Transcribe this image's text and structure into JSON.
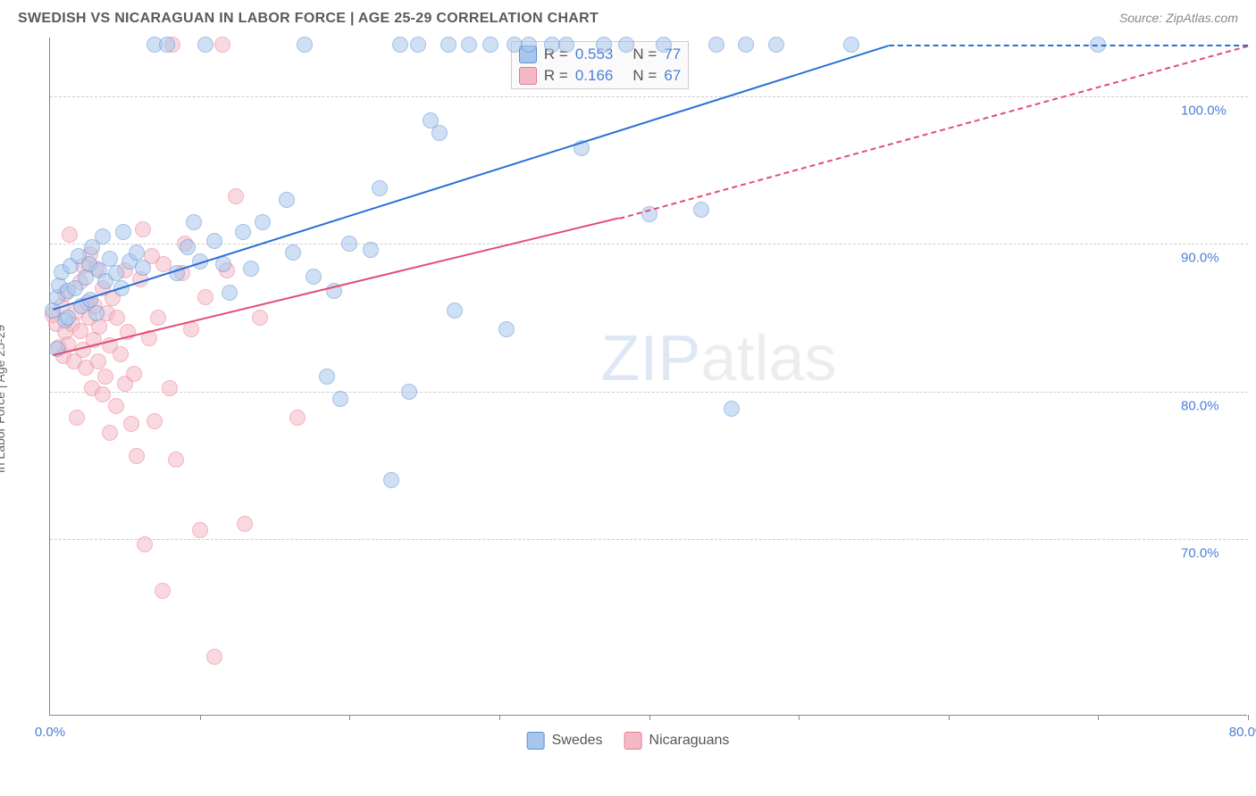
{
  "header": {
    "title": "SWEDISH VS NICARAGUAN IN LABOR FORCE | AGE 25-29 CORRELATION CHART",
    "source": "Source: ZipAtlas.com"
  },
  "ylabel": "In Labor Force | Age 25-29",
  "chart": {
    "type": "scatter",
    "xlim": [
      0,
      80
    ],
    "ylim": [
      58,
      104
    ],
    "xtick_label_at": [
      0,
      80
    ],
    "xtick_marks": [
      10,
      20,
      30,
      40,
      50,
      60,
      70,
      80
    ],
    "xtick_labels": {
      "0": "0.0%",
      "80": "80.0%"
    },
    "ytick_positions": [
      70,
      80,
      90,
      100
    ],
    "ytick_labels": {
      "70": "70.0%",
      "80": "80.0%",
      "90": "90.0%",
      "100": "100.0%"
    },
    "ytick_label_right_offset": 75,
    "grid_color": "#cccccc",
    "axis_color": "#888888",
    "label_color": "#4a7fd6",
    "background_color": "#ffffff",
    "point_radius": 9,
    "point_opacity": 0.55,
    "label_fontsize": 15
  },
  "series": {
    "swedes": {
      "label": "Swedes",
      "fill": "#a8c6ec",
      "stroke": "#5b8fd6",
      "line_color": "#2a6fd6",
      "trend_solid": {
        "x1": 0.2,
        "y1": 85.6,
        "x2": 56,
        "y2": 103.5
      },
      "trend_dash": {
        "x1": 56,
        "y1": 103.5,
        "x2": 80,
        "y2": 103.5
      },
      "points": [
        [
          0.2,
          85.5
        ],
        [
          0.5,
          86.4
        ],
        [
          0.5,
          82.9
        ],
        [
          0.6,
          87.2
        ],
        [
          0.8,
          88.1
        ],
        [
          1.0,
          84.8
        ],
        [
          1.2,
          85.0
        ],
        [
          1.2,
          86.8
        ],
        [
          1.4,
          88.5
        ],
        [
          1.7,
          87.0
        ],
        [
          1.9,
          89.2
        ],
        [
          2.1,
          85.8
        ],
        [
          2.4,
          87.7
        ],
        [
          2.6,
          88.6
        ],
        [
          2.7,
          86.2
        ],
        [
          2.8,
          89.8
        ],
        [
          3.1,
          85.3
        ],
        [
          3.3,
          88.2
        ],
        [
          3.5,
          90.5
        ],
        [
          3.7,
          87.5
        ],
        [
          4.0,
          89.0
        ],
        [
          4.4,
          88.0
        ],
        [
          4.8,
          87.0
        ],
        [
          4.9,
          90.8
        ],
        [
          5.3,
          88.8
        ],
        [
          5.8,
          89.4
        ],
        [
          6.2,
          88.4
        ],
        [
          7.0,
          103.5
        ],
        [
          7.8,
          103.5
        ],
        [
          8.5,
          88.0
        ],
        [
          9.2,
          89.8
        ],
        [
          9.6,
          91.5
        ],
        [
          10.0,
          88.8
        ],
        [
          10.4,
          103.5
        ],
        [
          11.0,
          90.2
        ],
        [
          11.6,
          88.6
        ],
        [
          12.0,
          86.7
        ],
        [
          12.9,
          90.8
        ],
        [
          13.4,
          88.3
        ],
        [
          14.2,
          91.5
        ],
        [
          15.8,
          93.0
        ],
        [
          16.2,
          89.4
        ],
        [
          17.0,
          103.5
        ],
        [
          17.6,
          87.8
        ],
        [
          18.5,
          81.0
        ],
        [
          19.0,
          86.8
        ],
        [
          19.4,
          79.5
        ],
        [
          20.0,
          90.0
        ],
        [
          21.4,
          89.6
        ],
        [
          22.0,
          93.8
        ],
        [
          22.8,
          74.0
        ],
        [
          23.4,
          103.5
        ],
        [
          24.0,
          80.0
        ],
        [
          24.6,
          103.5
        ],
        [
          25.4,
          98.4
        ],
        [
          26.0,
          97.5
        ],
        [
          26.6,
          103.5
        ],
        [
          27.0,
          85.5
        ],
        [
          28.0,
          103.5
        ],
        [
          29.4,
          103.5
        ],
        [
          30.5,
          84.2
        ],
        [
          31.0,
          103.5
        ],
        [
          32.0,
          103.5
        ],
        [
          33.5,
          103.5
        ],
        [
          34.5,
          103.5
        ],
        [
          35.5,
          96.5
        ],
        [
          37.0,
          103.5
        ],
        [
          38.5,
          103.5
        ],
        [
          40.0,
          92.0
        ],
        [
          41.0,
          103.5
        ],
        [
          43.5,
          92.3
        ],
        [
          44.5,
          103.5
        ],
        [
          45.5,
          78.8
        ],
        [
          46.5,
          103.5
        ],
        [
          48.5,
          103.5
        ],
        [
          53.5,
          103.5
        ],
        [
          70.0,
          103.5
        ]
      ]
    },
    "nicaraguans": {
      "label": "Nicaraguans",
      "fill": "#f5b9c6",
      "stroke": "#e77a94",
      "line_color": "#e24d74",
      "trend_solid": {
        "x1": 0.2,
        "y1": 82.5,
        "x2": 38,
        "y2": 91.8
      },
      "trend_dash": {
        "x1": 38,
        "y1": 91.8,
        "x2": 80,
        "y2": 103.5
      },
      "points": [
        [
          0.2,
          85.2
        ],
        [
          0.4,
          84.6
        ],
        [
          0.6,
          83.0
        ],
        [
          0.8,
          85.8
        ],
        [
          0.9,
          82.4
        ],
        [
          1.0,
          84.0
        ],
        [
          1.0,
          86.6
        ],
        [
          1.2,
          83.2
        ],
        [
          1.3,
          90.6
        ],
        [
          1.5,
          84.6
        ],
        [
          1.6,
          82.0
        ],
        [
          1.8,
          85.4
        ],
        [
          1.8,
          78.2
        ],
        [
          2.0,
          87.4
        ],
        [
          2.0,
          84.1
        ],
        [
          2.2,
          82.8
        ],
        [
          2.2,
          88.5
        ],
        [
          2.4,
          81.6
        ],
        [
          2.5,
          86.0
        ],
        [
          2.6,
          85.0
        ],
        [
          2.7,
          89.3
        ],
        [
          2.8,
          80.2
        ],
        [
          2.9,
          83.5
        ],
        [
          3.0,
          85.8
        ],
        [
          3.1,
          88.3
        ],
        [
          3.2,
          82.0
        ],
        [
          3.3,
          84.4
        ],
        [
          3.5,
          87.0
        ],
        [
          3.5,
          79.8
        ],
        [
          3.7,
          81.0
        ],
        [
          3.8,
          85.3
        ],
        [
          4.0,
          83.1
        ],
        [
          4.0,
          77.2
        ],
        [
          4.2,
          86.3
        ],
        [
          4.4,
          79.0
        ],
        [
          4.5,
          85.0
        ],
        [
          4.7,
          82.5
        ],
        [
          5.0,
          80.5
        ],
        [
          5.0,
          88.2
        ],
        [
          5.2,
          84.0
        ],
        [
          5.4,
          77.8
        ],
        [
          5.6,
          81.2
        ],
        [
          5.8,
          75.6
        ],
        [
          6.0,
          87.6
        ],
        [
          6.2,
          91.0
        ],
        [
          6.3,
          69.6
        ],
        [
          6.6,
          83.6
        ],
        [
          6.8,
          89.2
        ],
        [
          7.0,
          78.0
        ],
        [
          7.2,
          85.0
        ],
        [
          7.5,
          66.5
        ],
        [
          7.6,
          88.6
        ],
        [
          8.0,
          80.2
        ],
        [
          8.2,
          103.5
        ],
        [
          8.4,
          75.4
        ],
        [
          8.8,
          88.0
        ],
        [
          9.0,
          90.0
        ],
        [
          9.4,
          84.2
        ],
        [
          10.0,
          70.6
        ],
        [
          10.4,
          86.4
        ],
        [
          11.0,
          62.0
        ],
        [
          11.5,
          103.5
        ],
        [
          11.8,
          88.2
        ],
        [
          12.4,
          93.2
        ],
        [
          13.0,
          71.0
        ],
        [
          14.0,
          85.0
        ],
        [
          16.5,
          78.2
        ]
      ]
    }
  },
  "stats_box": {
    "rows": [
      {
        "swatch_fill": "#a8c6ec",
        "swatch_stroke": "#5b8fd6",
        "r_label": "R =",
        "r": "0.553",
        "n_label": "N =",
        "n": "77"
      },
      {
        "swatch_fill": "#f5b9c6",
        "swatch_stroke": "#e77a94",
        "r_label": "R =",
        "r": "0.166",
        "n_label": "N =",
        "n": "67"
      }
    ]
  },
  "legend": {
    "items": [
      {
        "swatch_fill": "#a8c6ec",
        "swatch_stroke": "#5b8fd6",
        "label": "Swedes"
      },
      {
        "swatch_fill": "#f5b9c6",
        "swatch_stroke": "#e77a94",
        "label": "Nicaraguans"
      }
    ]
  },
  "watermark": {
    "zip": "ZIP",
    "atlas": "atlas"
  }
}
